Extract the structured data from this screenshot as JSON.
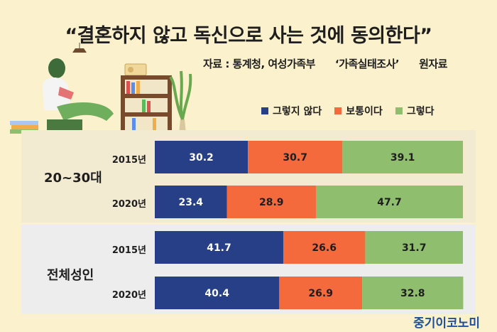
{
  "title": "“결혼하지 않고 독신으로 사는 것에 동의한다”",
  "source": {
    "prefix": "자료 : 통계청, 여성가족부",
    "survey": "‘가족실태조사’",
    "suffix": "원자료"
  },
  "brand": "중기이코노미",
  "colors": {
    "disagree": "#263f86",
    "neutral": "#f46a3c",
    "agree": "#8fbf6e",
    "background": "#fbf1cc"
  },
  "chart_data": {
    "type": "bar",
    "orientation": "horizontal",
    "stacked": true,
    "categories": [
      "2015년",
      "2020년",
      "2015년",
      "2020년"
    ],
    "groups": [
      {
        "name": "20~30대",
        "rows": [
          "2015년",
          "2020년"
        ]
      },
      {
        "name": "전체성인",
        "rows": [
          "2015년",
          "2020년"
        ]
      }
    ],
    "series": [
      {
        "name": "그렇지 않다",
        "values": [
          30.2,
          23.4,
          41.7,
          40.4
        ]
      },
      {
        "name": "보통이다",
        "values": [
          30.7,
          28.9,
          26.6,
          26.9
        ]
      },
      {
        "name": "그렇다",
        "values": [
          39.1,
          47.7,
          31.7,
          32.8
        ]
      }
    ],
    "xlim": [
      0,
      100
    ],
    "legend_position": "top-right"
  }
}
